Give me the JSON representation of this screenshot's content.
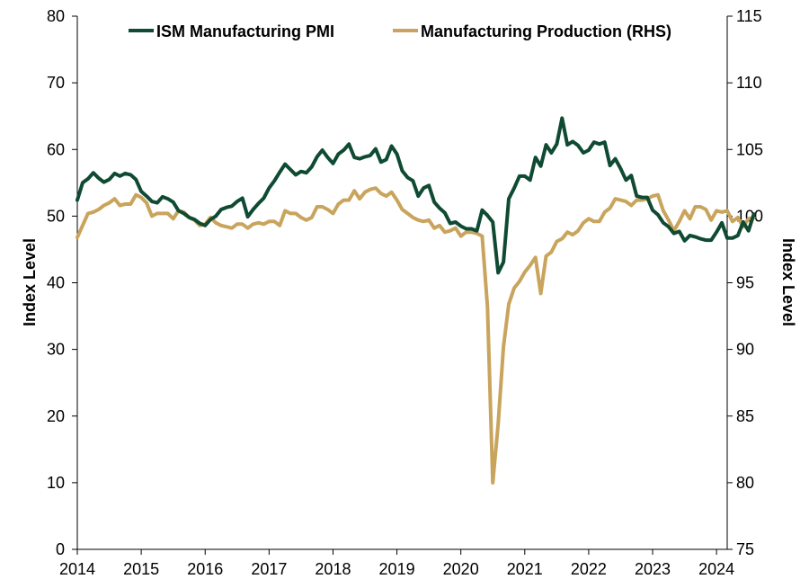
{
  "chart_data": {
    "type": "line",
    "title": "",
    "legend_position": "top-center",
    "grid": false,
    "x_ticks": [
      "2014",
      "2015",
      "2016",
      "2017",
      "2018",
      "2019",
      "2020",
      "2021",
      "2022",
      "2023",
      "2024"
    ],
    "xlim": [
      "2014-01",
      "2024-03"
    ],
    "y_left": {
      "label": "Index Level",
      "lim": [
        0,
        80
      ],
      "ticks": [
        "0",
        "10",
        "20",
        "30",
        "40",
        "50",
        "60",
        "70",
        "80"
      ]
    },
    "y_right": {
      "label": "Index Level",
      "lim": [
        75,
        115
      ],
      "ticks": [
        "75",
        "80",
        "85",
        "90",
        "95",
        "100",
        "105",
        "110",
        "115"
      ]
    },
    "series": [
      {
        "name": "ISM Manufacturing PMI",
        "axis": "left",
        "color": "#0f4a33",
        "start": "2014-01",
        "values": [
          52.4,
          55,
          55.6,
          56.5,
          55.7,
          55.1,
          55.5,
          56.4,
          56,
          56.4,
          56.2,
          55.5,
          53.7,
          53,
          52.2,
          52,
          52.9,
          52.6,
          52.1,
          50.8,
          50.4,
          49.8,
          49.5,
          48.9,
          48.6,
          49.5,
          50,
          51,
          51.3,
          51.5,
          52.2,
          52.7,
          49.9,
          51,
          51.9,
          52.7,
          54.2,
          55.3,
          56.6,
          57.8,
          57,
          56.2,
          56.7,
          56.5,
          57.4,
          58.9,
          59.9,
          58.8,
          57.9,
          59.3,
          59.9,
          60.8,
          58.8,
          58.6,
          58.9,
          59.1,
          60.1,
          58.1,
          58.5,
          60.5,
          59.3,
          56.8,
          55.8,
          55.3,
          53,
          54.2,
          54.6,
          52.1,
          51.2,
          50.5,
          48.9,
          49.1,
          48.5,
          48.1,
          48.1,
          47.8,
          50.9,
          50.1,
          49.1,
          41.5,
          43.1,
          52.6,
          54.2,
          56,
          56,
          55.4,
          58.8,
          57.5,
          60.7,
          59.5,
          60.8,
          64.7,
          60.7,
          61.2,
          60.6,
          59.5,
          59.9,
          61.1,
          60.8,
          61.1,
          57.6,
          58.6,
          57.1,
          55.4,
          56.1,
          53,
          52.8,
          52.8,
          50.9,
          50.2,
          49,
          48.4,
          47.4,
          47.7,
          46.3,
          47.1,
          46.9,
          46.6,
          46.4,
          46.4,
          47.6,
          49,
          46.7,
          46.7,
          47.1,
          49.1,
          47.8,
          50.3
        ]
      },
      {
        "name": "Manufacturing Production (RHS)",
        "axis": "right",
        "color": "#c9a45c",
        "start": "2014-01",
        "values": [
          98.4,
          99.3,
          100.2,
          100.3,
          100.5,
          100.8,
          101,
          101.3,
          100.8,
          100.9,
          100.9,
          101.6,
          101.4,
          101,
          100,
          100.2,
          100.2,
          100.2,
          99.8,
          100.4,
          100.3,
          99.9,
          99.7,
          99.3,
          99.4,
          99.9,
          99.5,
          99.3,
          99.2,
          99.1,
          99.4,
          99.4,
          99.1,
          99.4,
          99.5,
          99.4,
          99.6,
          99.6,
          99.3,
          100.4,
          100.2,
          100.2,
          99.9,
          99.7,
          99.9,
          100.7,
          100.7,
          100.5,
          100.2,
          100.9,
          101.2,
          101.2,
          101.9,
          101.3,
          101.8,
          102,
          102.1,
          101.7,
          101.5,
          101.8,
          101.2,
          100.5,
          100.2,
          99.9,
          99.7,
          99.6,
          99.7,
          99.1,
          99.3,
          98.8,
          98.9,
          99.1,
          98.5,
          98.8,
          98.8,
          98.7,
          98.5,
          93.2,
          80,
          84.4,
          90.2,
          93.4,
          94.6,
          95.1,
          95.8,
          96.3,
          96.9,
          94.2,
          97,
          97.3,
          98.1,
          98.3,
          98.8,
          98.6,
          98.9,
          99.5,
          99.8,
          99.6,
          99.6,
          100.3,
          100.6,
          101.3,
          101.2,
          101.1,
          100.8,
          101.2,
          101.2,
          101.3,
          101.5,
          101.6,
          100.4,
          99.7,
          98.9,
          99.6,
          100.4,
          99.8,
          100.7,
          100.7,
          100.5,
          99.7,
          100.4,
          100.3,
          100.4,
          99.6,
          99.9,
          99.2,
          99.8,
          99.9
        ]
      }
    ]
  }
}
